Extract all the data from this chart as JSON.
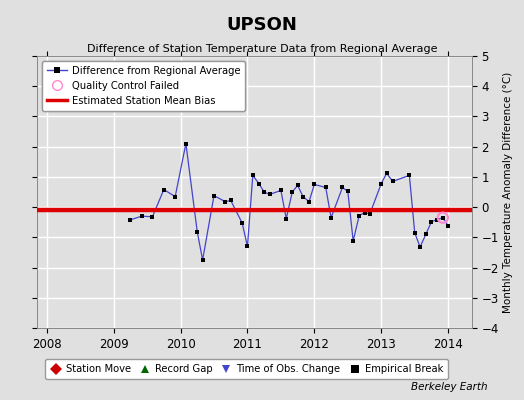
{
  "title": "UPSON",
  "subtitle": "Difference of Station Temperature Data from Regional Average",
  "ylabel": "Monthly Temperature Anomaly Difference (°C)",
  "bottom_credit": "Berkeley Earth",
  "ylim": [
    -4,
    5
  ],
  "xlim_start": 2007.85,
  "xlim_end": 2014.35,
  "xticks": [
    2008,
    2009,
    2010,
    2011,
    2012,
    2013,
    2014
  ],
  "yticks": [
    -4,
    -3,
    -2,
    -1,
    0,
    1,
    2,
    3,
    4,
    5
  ],
  "bias_value": -0.08,
  "bg_color": "#e0e0e0",
  "grid_color": "#ffffff",
  "line_color": "#4444cc",
  "dot_color": "#000000",
  "bias_color": "#dd0000",
  "qc_edge_color": "#ff88cc",
  "data_x": [
    2009.25,
    2009.42,
    2009.58,
    2009.75,
    2009.92,
    2010.08,
    2010.25,
    2010.33,
    2010.5,
    2010.67,
    2010.75,
    2010.92,
    2011.0,
    2011.08,
    2011.17,
    2011.25,
    2011.33,
    2011.5,
    2011.58,
    2011.67,
    2011.75,
    2011.83,
    2011.92,
    2012.0,
    2012.17,
    2012.25,
    2012.42,
    2012.5,
    2012.58,
    2012.67,
    2012.75,
    2012.83,
    2013.0,
    2013.08,
    2013.17,
    2013.42,
    2013.5,
    2013.58,
    2013.67,
    2013.75,
    2013.83,
    2013.92,
    2014.0
  ],
  "data_y": [
    -0.42,
    -0.3,
    -0.32,
    0.58,
    0.35,
    2.1,
    -0.82,
    -1.75,
    0.38,
    0.18,
    0.22,
    -0.52,
    -1.3,
    1.05,
    0.78,
    0.5,
    0.42,
    0.55,
    -0.38,
    0.5,
    0.72,
    0.35,
    0.18,
    0.75,
    0.65,
    -0.35,
    0.65,
    0.52,
    -1.12,
    -0.28,
    -0.18,
    -0.22,
    0.78,
    1.12,
    0.85,
    1.05,
    -0.85,
    -1.32,
    -0.88,
    -0.48,
    -0.42,
    -0.35,
    -0.62
  ],
  "qc_fail_x": [
    2013.92
  ],
  "qc_fail_y": [
    -0.35
  ]
}
